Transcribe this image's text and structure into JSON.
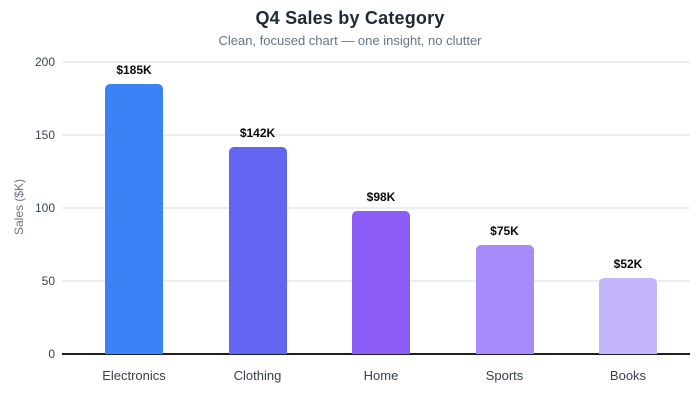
{
  "header": {
    "title": "Q4 Sales by Category",
    "subtitle": "Clean, focused chart — one insight, no clutter"
  },
  "chart_data": {
    "type": "bar",
    "title": "Q4 Sales by Category",
    "subtitle": "Clean, focused chart — one insight, no clutter",
    "categories": [
      "Electronics",
      "Clothing",
      "Home",
      "Sports",
      "Books"
    ],
    "values": [
      185,
      142,
      98,
      75,
      52
    ],
    "value_labels": [
      "$185K",
      "$142K",
      "$98K",
      "$75K",
      "$52K"
    ],
    "xlabel": "",
    "ylabel": "Sales ($K)",
    "ylim": [
      0,
      200
    ],
    "yticks": [
      0,
      50,
      100,
      150,
      200
    ],
    "grid": "horizontal-only",
    "legend": "none",
    "bar_colors": [
      "#3b82f6",
      "#6366f1",
      "#8b5cf6",
      "#a78bfa",
      "#c4b5fd"
    ],
    "colors": {
      "background": "#ffffff",
      "title": "#1f2937",
      "subtitle": "#64748b",
      "tick_label": "#374151",
      "axis_label": "#6b7280",
      "category_label": "#374151",
      "value_label": "#0a0a0a",
      "gridline": "#eceef1",
      "baseline": "#1f1f1f"
    }
  }
}
